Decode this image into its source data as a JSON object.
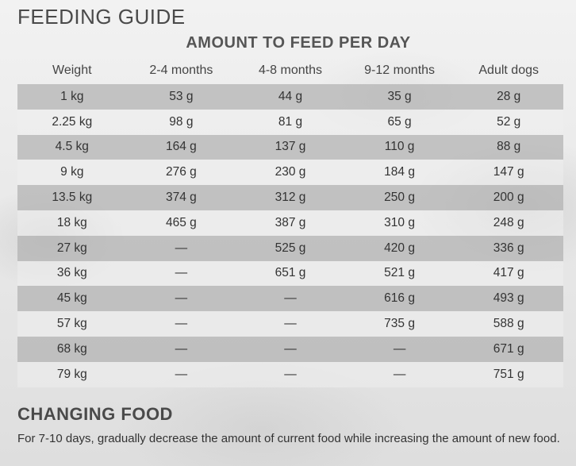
{
  "title": "FEEDING GUIDE",
  "subtitle": "AMOUNT TO FEED PER DAY",
  "table": {
    "headers": [
      "Weight",
      "2-4 months",
      "4-8 months",
      "9-12 months",
      "Adult dogs"
    ],
    "rows": [
      [
        "1 kg",
        "53 g",
        "44 g",
        "35 g",
        "28 g"
      ],
      [
        "2.25 kg",
        "98 g",
        "81 g",
        "65 g",
        "52 g"
      ],
      [
        "4.5 kg",
        "164 g",
        "137 g",
        "110 g",
        "88 g"
      ],
      [
        "9 kg",
        "276 g",
        "230 g",
        "184 g",
        "147 g"
      ],
      [
        "13.5 kg",
        "374 g",
        "312 g",
        "250 g",
        "200 g"
      ],
      [
        "18 kg",
        "465 g",
        "387 g",
        "310 g",
        "248 g"
      ],
      [
        "27 kg",
        "—",
        "525 g",
        "420 g",
        "336 g"
      ],
      [
        "36 kg",
        "—",
        "651 g",
        "521 g",
        "417 g"
      ],
      [
        "45 kg",
        "—",
        "—",
        "616 g",
        "493 g"
      ],
      [
        "57 kg",
        "—",
        "—",
        "735 g",
        "588 g"
      ],
      [
        "68 kg",
        "—",
        "—",
        "—",
        "671 g"
      ],
      [
        "79 kg",
        "—",
        "—",
        "—",
        "751 g"
      ]
    ]
  },
  "changing": {
    "title": "CHANGING FOOD",
    "text": "For 7-10 days, gradually decrease the amount of current food while increasing the amount of new food."
  }
}
